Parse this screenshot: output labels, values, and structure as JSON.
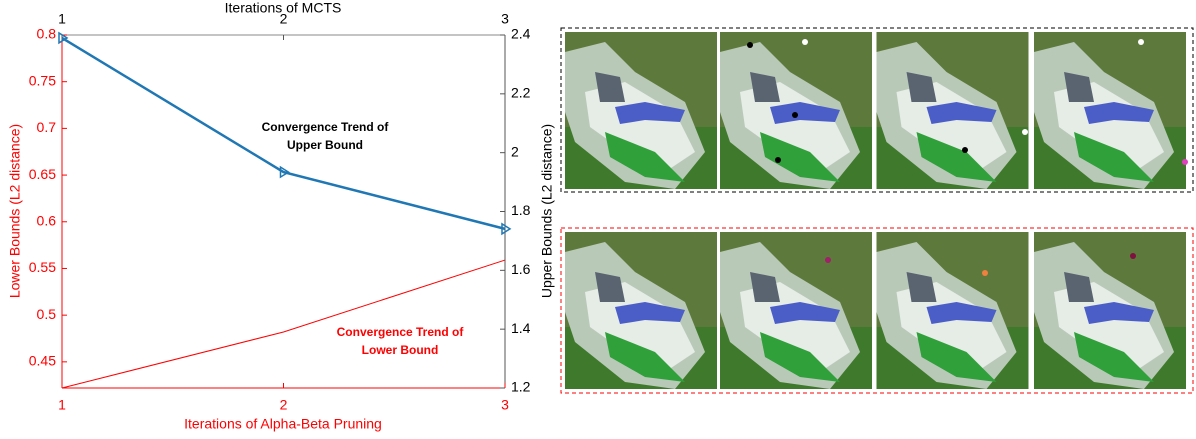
{
  "chart_data": {
    "type": "line",
    "x_label": "Iterations of Alpha-Beta Pruning",
    "x2_label": "Iterations of MCTS",
    "y_label": "Lower Bounds (L2 distance)",
    "y2_label": "Upper Bounds (L2 distance)",
    "x": [
      1,
      2,
      3
    ],
    "x2": [
      1,
      2,
      3
    ],
    "xlim": [
      1,
      3
    ],
    "xticks": [
      1,
      2,
      3
    ],
    "x2lim": [
      1,
      3
    ],
    "x2ticks": [
      1,
      2,
      3
    ],
    "ylim": [
      0.422,
      0.8
    ],
    "yticks": [
      0.45,
      0.5,
      0.55,
      0.6,
      0.65,
      0.7,
      0.75,
      0.8
    ],
    "y2lim": [
      1.2,
      2.4
    ],
    "y2ticks": [
      1.2,
      1.4,
      1.6,
      1.8,
      2,
      2.2,
      2.4
    ],
    "series": [
      {
        "color": "#1f77b4",
        "values": [
          2.39,
          1.934,
          1.741
        ],
        "axis": "y2",
        "xaxis": "x2",
        "marker": "triangle-right"
      },
      {
        "color": "#ff0000",
        "values": [
          0.422,
          0.482,
          0.559
        ],
        "axis": "y",
        "xaxis": "x"
      }
    ],
    "annotations": [
      {
        "lines": [
          "Convergence Trend of",
          "Upper Bound"
        ],
        "color": "#000000"
      },
      {
        "lines": [
          "Convergence Trend of",
          "Lower Bound"
        ],
        "color": "#ff0000"
      }
    ]
  }
}
